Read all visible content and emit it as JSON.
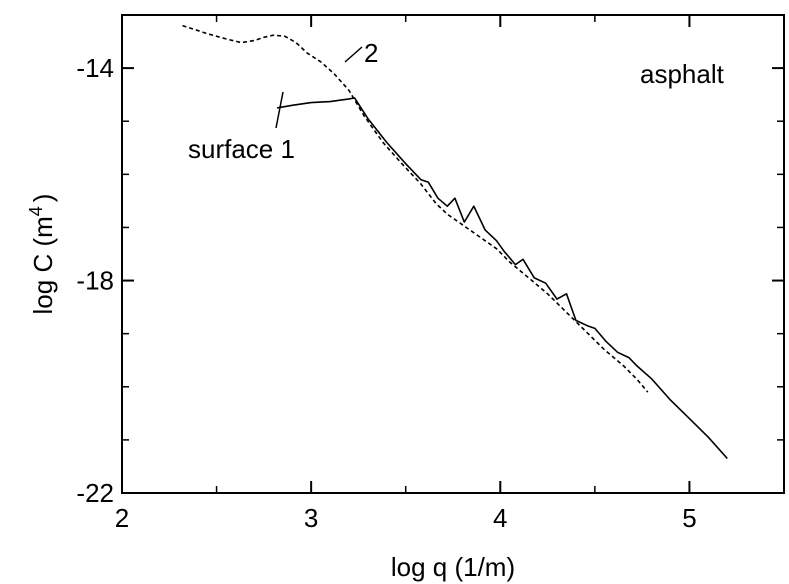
{
  "chart_data": {
    "type": "line",
    "title": "",
    "xlabel": "log q (1/m)",
    "ylabel_main": "log C (m",
    "ylabel_sup": "4",
    "ylabel_close": ")",
    "xlim": [
      2,
      5.5
    ],
    "ylim": [
      -22,
      -13
    ],
    "x_ticks": [
      2,
      3,
      4,
      5
    ],
    "x_minor_ticks": [
      2.5,
      3.5,
      4.5,
      5.5
    ],
    "y_ticks": [
      -14,
      -18,
      -22
    ],
    "y_minor_ticks": [
      -13,
      -15,
      -16,
      -17,
      -19,
      -20,
      -21
    ],
    "grid": false,
    "annotations": {
      "material": "asphalt",
      "series1_label": "surface 1",
      "series2_label": "2"
    },
    "series": [
      {
        "style": "solid",
        "x": [
          2.82,
          2.9,
          3.0,
          3.1,
          3.2,
          3.23,
          3.3,
          3.4,
          3.5,
          3.58,
          3.62,
          3.67,
          3.72,
          3.76,
          3.81,
          3.86,
          3.92,
          3.98,
          4.02,
          4.08,
          4.12,
          4.18,
          4.24,
          4.3,
          4.35,
          4.4,
          4.46,
          4.5,
          4.56,
          4.62,
          4.68,
          4.72,
          4.8,
          4.9,
          5.0,
          5.1,
          5.2
        ],
        "y": [
          -14.75,
          -14.7,
          -14.65,
          -14.63,
          -14.58,
          -14.56,
          -14.95,
          -15.4,
          -15.8,
          -16.1,
          -16.15,
          -16.45,
          -16.6,
          -16.45,
          -16.9,
          -16.6,
          -17.05,
          -17.25,
          -17.45,
          -17.7,
          -17.6,
          -17.95,
          -18.05,
          -18.35,
          -18.25,
          -18.75,
          -18.85,
          -18.9,
          -19.15,
          -19.35,
          -19.45,
          -19.6,
          -19.85,
          -20.25,
          -20.6,
          -20.95,
          -21.35
        ]
      },
      {
        "style": "dashed",
        "x": [
          2.32,
          2.45,
          2.55,
          2.63,
          2.7,
          2.75,
          2.8,
          2.86,
          2.92,
          2.98,
          3.05,
          3.12,
          3.2,
          3.28,
          3.38,
          3.48,
          3.58,
          3.66,
          3.72,
          3.8,
          3.9,
          3.98,
          4.05,
          4.15,
          4.25,
          4.35,
          4.45,
          4.55,
          4.65,
          4.72,
          4.78
        ],
        "y": [
          -13.2,
          -13.35,
          -13.45,
          -13.52,
          -13.48,
          -13.42,
          -13.38,
          -13.4,
          -13.52,
          -13.72,
          -13.88,
          -14.1,
          -14.42,
          -14.9,
          -15.4,
          -15.8,
          -16.18,
          -16.55,
          -16.75,
          -16.95,
          -17.2,
          -17.4,
          -17.65,
          -17.95,
          -18.25,
          -18.6,
          -18.95,
          -19.3,
          -19.6,
          -19.85,
          -20.1
        ]
      }
    ]
  }
}
